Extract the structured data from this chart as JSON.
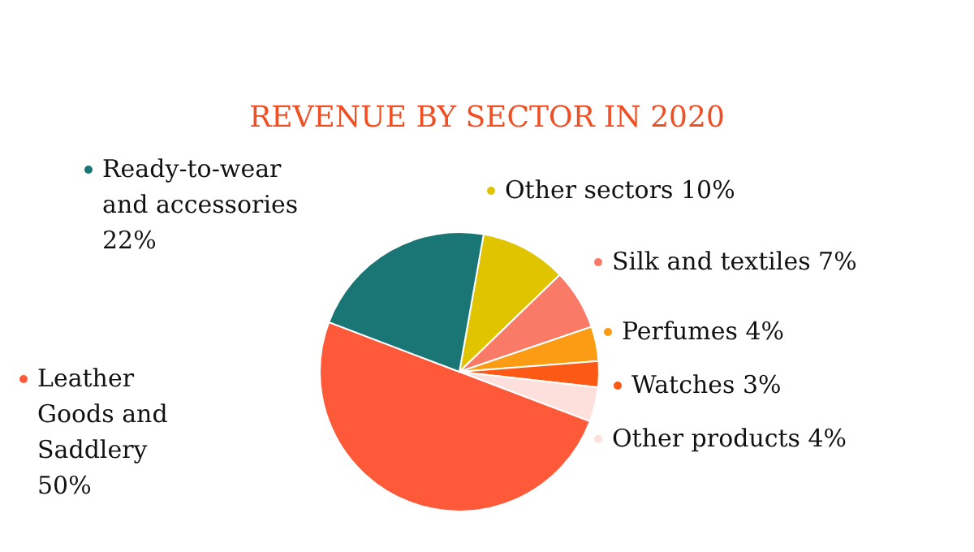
{
  "chart_data": {
    "type": "pie",
    "title": "REVENUE BY SECTOR IN 2020",
    "categories": [
      "Other sectors",
      "Silk and textiles",
      "Perfumes",
      "Watches",
      "Other products",
      "Leather Goods and Saddlery",
      "Ready-to-wear and accessories"
    ],
    "values": [
      10,
      7,
      4,
      3,
      4,
      50,
      22
    ],
    "value_labels": [
      "10%",
      "7%",
      "4%",
      "3%",
      "4%",
      "50%",
      "22%"
    ],
    "colors": [
      "#e0c400",
      "#fa7a68",
      "#fb9c14",
      "#fc5a14",
      "#fde0dc",
      "#fe5a3a",
      "#1a7575"
    ],
    "legend": "top left"
  }
}
